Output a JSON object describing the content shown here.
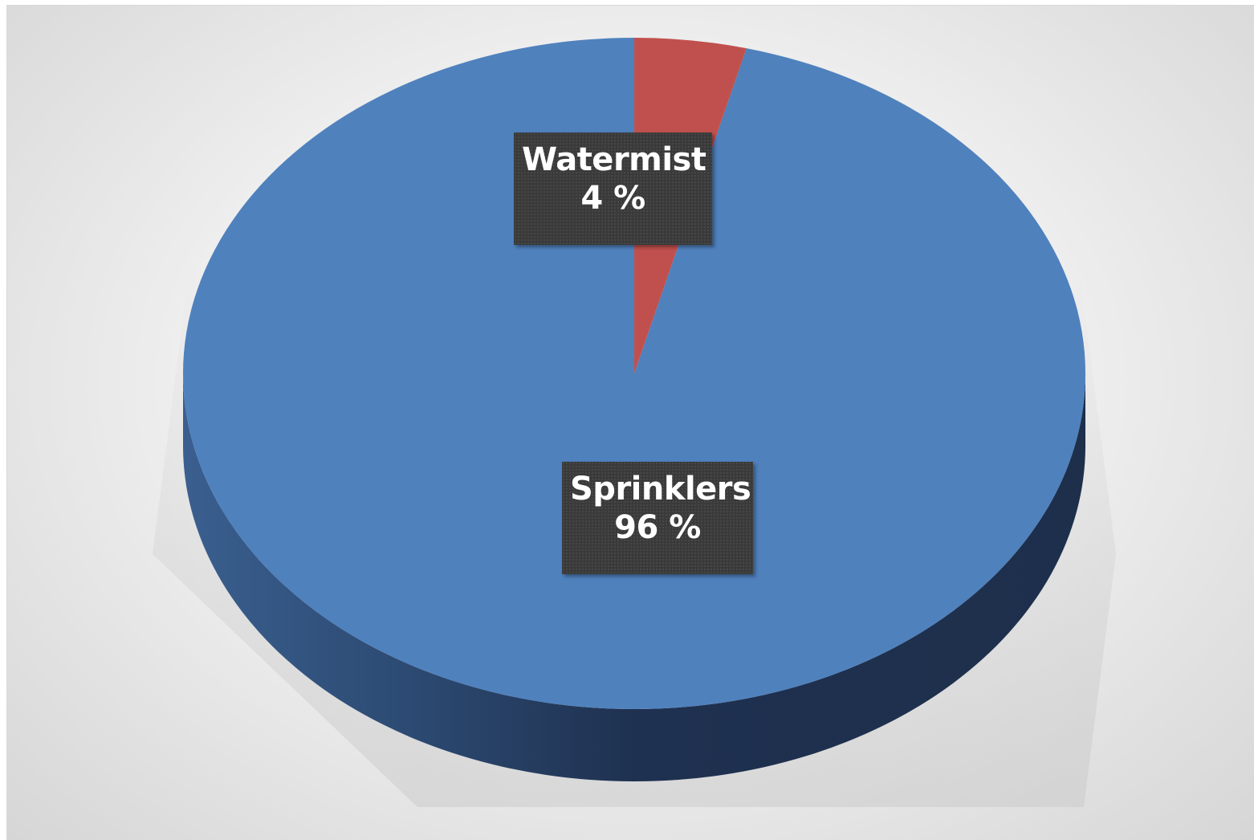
{
  "chart_data": {
    "type": "pie",
    "title": "",
    "slices": [
      {
        "label": "Sprinklers",
        "value": 96,
        "display": "96 %",
        "color": "#4f81bd",
        "side_color": "#1f3150"
      },
      {
        "label": "Watermist",
        "value": 4,
        "display": "4 %",
        "color": "#c0504d",
        "side_color": "#7a2f2d"
      }
    ],
    "start_angle_deg": -90,
    "direction": "counterclockwise",
    "legend": "none",
    "three_d": true
  }
}
